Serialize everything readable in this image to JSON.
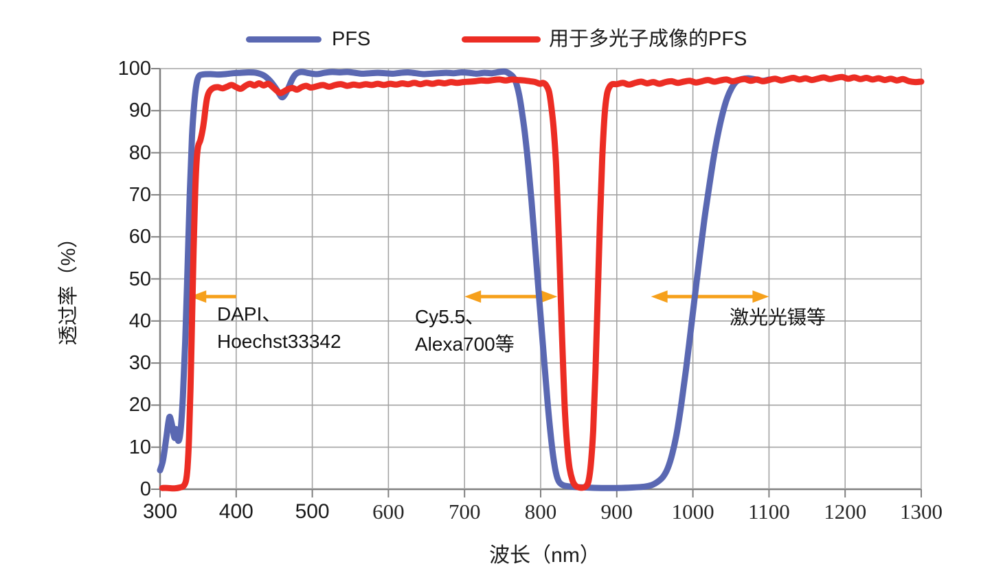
{
  "legend": {
    "items": [
      {
        "label": "PFS",
        "color": "#5A68B2"
      },
      {
        "label": "用于多光子成像的PFS",
        "color": "#EC2D24"
      }
    ]
  },
  "colors": {
    "grid": "#A3A3A3",
    "axis": "#7F7F7F",
    "arrow": "#F6A01B",
    "text": "#1A1A1A"
  },
  "chart_data": {
    "type": "line",
    "title": "",
    "xlabel": "波长（nm）",
    "ylabel": "透过率（%）",
    "xlim": [
      300,
      1300
    ],
    "ylim": [
      0,
      100
    ],
    "x_ticks": [
      300,
      400,
      500,
      600,
      700,
      800,
      900,
      1000,
      1100,
      1200,
      1300
    ],
    "y_ticks": [
      0,
      10,
      20,
      30,
      40,
      50,
      60,
      70,
      80,
      90,
      100
    ],
    "grid": true,
    "legend_position": "top",
    "series": [
      {
        "name": "PFS",
        "color": "#5A68B2",
        "points": [
          [
            300,
            4.5
          ],
          [
            304,
            7
          ],
          [
            308,
            12
          ],
          [
            311,
            16
          ],
          [
            313,
            17.2
          ],
          [
            316,
            15
          ],
          [
            319,
            12.2
          ],
          [
            321,
            14.3
          ],
          [
            324,
            11.5
          ],
          [
            327,
            14
          ],
          [
            330,
            22
          ],
          [
            333,
            35
          ],
          [
            336,
            52
          ],
          [
            339,
            70
          ],
          [
            342,
            84
          ],
          [
            345,
            92
          ],
          [
            348,
            96.5
          ],
          [
            351,
            98.2
          ],
          [
            356,
            98.6
          ],
          [
            366,
            98.7
          ],
          [
            376,
            98.6
          ],
          [
            386,
            98.7
          ],
          [
            396,
            98.9
          ],
          [
            406,
            99
          ],
          [
            416,
            99.1
          ],
          [
            426,
            99
          ],
          [
            436,
            98.4
          ],
          [
            444,
            97.2
          ],
          [
            451,
            95.6
          ],
          [
            456,
            94.2
          ],
          [
            460,
            93.2
          ],
          [
            464,
            93.8
          ],
          [
            469,
            95.6
          ],
          [
            474,
            97.6
          ],
          [
            479,
            98.8
          ],
          [
            486,
            99.2
          ],
          [
            496,
            98.9
          ],
          [
            506,
            98.7
          ],
          [
            516,
            99
          ],
          [
            526,
            99.2
          ],
          [
            536,
            99.1
          ],
          [
            546,
            99.2
          ],
          [
            556,
            99
          ],
          [
            566,
            98.8
          ],
          [
            576,
            98.9
          ],
          [
            586,
            99
          ],
          [
            596,
            98.9
          ],
          [
            606,
            98.8
          ],
          [
            616,
            99
          ],
          [
            626,
            99.1
          ],
          [
            636,
            98.9
          ],
          [
            646,
            98.7
          ],
          [
            656,
            98.8
          ],
          [
            666,
            98.9
          ],
          [
            676,
            99
          ],
          [
            686,
            98.9
          ],
          [
            696,
            99.1
          ],
          [
            706,
            99
          ],
          [
            716,
            98.8
          ],
          [
            726,
            99
          ],
          [
            736,
            98.9
          ],
          [
            746,
            99.2
          ],
          [
            753,
            99.3
          ],
          [
            759,
            98.8
          ],
          [
            764,
            98
          ],
          [
            768,
            96.5
          ],
          [
            772,
            93.5
          ],
          [
            776,
            89
          ],
          [
            780,
            83.5
          ],
          [
            784,
            76.5
          ],
          [
            788,
            68.5
          ],
          [
            792,
            59.5
          ],
          [
            796,
            50
          ],
          [
            800,
            41
          ],
          [
            804,
            32
          ],
          [
            808,
            23
          ],
          [
            812,
            15
          ],
          [
            816,
            8.5
          ],
          [
            820,
            4
          ],
          [
            824,
            1.8
          ],
          [
            829,
            1
          ],
          [
            836,
            0.7
          ],
          [
            846,
            0.5
          ],
          [
            860,
            0.4
          ],
          [
            880,
            0.3
          ],
          [
            900,
            0.3
          ],
          [
            920,
            0.4
          ],
          [
            936,
            0.6
          ],
          [
            946,
            1
          ],
          [
            954,
            1.8
          ],
          [
            961,
            3
          ],
          [
            967,
            5
          ],
          [
            973,
            8.5
          ],
          [
            979,
            13.5
          ],
          [
            985,
            20.5
          ],
          [
            991,
            28.5
          ],
          [
            997,
            37.5
          ],
          [
            1003,
            46.5
          ],
          [
            1009,
            55.5
          ],
          [
            1015,
            64
          ],
          [
            1021,
            71.5
          ],
          [
            1027,
            78.5
          ],
          [
            1033,
            84.5
          ],
          [
            1039,
            89.3
          ],
          [
            1045,
            93
          ],
          [
            1051,
            95.4
          ],
          [
            1057,
            96.9
          ],
          [
            1064,
            97.5
          ],
          [
            1073,
            97.7
          ],
          [
            1083,
            97.4
          ],
          [
            1092,
            97.1
          ],
          [
            1100,
            97.4
          ]
        ]
      },
      {
        "name": "用于多光子成像的PFS",
        "color": "#EC2D24",
        "points": [
          [
            303,
            0.3
          ],
          [
            310,
            0.3
          ],
          [
            318,
            0.2
          ],
          [
            326,
            0.4
          ],
          [
            331,
            0.8
          ],
          [
            334,
            2
          ],
          [
            336,
            5
          ],
          [
            338,
            12
          ],
          [
            340,
            24
          ],
          [
            342,
            40
          ],
          [
            344,
            57
          ],
          [
            346,
            70
          ],
          [
            348,
            78
          ],
          [
            350,
            81.5
          ],
          [
            353,
            83
          ],
          [
            356,
            85.5
          ],
          [
            358,
            88
          ],
          [
            360,
            91
          ],
          [
            362,
            93.2
          ],
          [
            365,
            94.6
          ],
          [
            370,
            95.4
          ],
          [
            376,
            95.6
          ],
          [
            382,
            95.3
          ],
          [
            388,
            95.7
          ],
          [
            394,
            96.1
          ],
          [
            400,
            95.6
          ],
          [
            406,
            95.2
          ],
          [
            412,
            95.9
          ],
          [
            418,
            96.4
          ],
          [
            424,
            96
          ],
          [
            430,
            96.5
          ],
          [
            436,
            96
          ],
          [
            442,
            96.4
          ],
          [
            448,
            95.6
          ],
          [
            453,
            94.8
          ],
          [
            458,
            94.2
          ],
          [
            463,
            94.6
          ],
          [
            468,
            95.1
          ],
          [
            474,
            95.4
          ],
          [
            480,
            95
          ],
          [
            486,
            95.6
          ],
          [
            492,
            95.9
          ],
          [
            498,
            95.5
          ],
          [
            506,
            95.8
          ],
          [
            514,
            96.1
          ],
          [
            522,
            95.7
          ],
          [
            530,
            96.1
          ],
          [
            538,
            96.3
          ],
          [
            546,
            95.9
          ],
          [
            554,
            96.2
          ],
          [
            562,
            96
          ],
          [
            570,
            96.3
          ],
          [
            578,
            96.1
          ],
          [
            586,
            96.4
          ],
          [
            594,
            96.1
          ],
          [
            602,
            96.4
          ],
          [
            610,
            96.2
          ],
          [
            618,
            96.5
          ],
          [
            626,
            96.3
          ],
          [
            634,
            96.6
          ],
          [
            642,
            96.3
          ],
          [
            650,
            96.6
          ],
          [
            658,
            96.4
          ],
          [
            666,
            96.7
          ],
          [
            674,
            96.5
          ],
          [
            682,
            96.8
          ],
          [
            690,
            96.6
          ],
          [
            698,
            96.8
          ],
          [
            706,
            96.9
          ],
          [
            714,
            97
          ],
          [
            722,
            97.2
          ],
          [
            730,
            97.1
          ],
          [
            738,
            97.3
          ],
          [
            746,
            97.4
          ],
          [
            754,
            97.2
          ],
          [
            762,
            97.4
          ],
          [
            770,
            97.3
          ],
          [
            778,
            97.2
          ],
          [
            786,
            97
          ],
          [
            793,
            96.8
          ],
          [
            799,
            96.4
          ],
          [
            803,
            96.6
          ],
          [
            807,
            96.1
          ],
          [
            811,
            94.5
          ],
          [
            814,
            91
          ],
          [
            817,
            86
          ],
          [
            820,
            78
          ],
          [
            822,
            69
          ],
          [
            824,
            59
          ],
          [
            826,
            48
          ],
          [
            828,
            37
          ],
          [
            830,
            27
          ],
          [
            832,
            18
          ],
          [
            835,
            10
          ],
          [
            838,
            5
          ],
          [
            842,
            2
          ],
          [
            846,
            0.8
          ],
          [
            851,
            0.4
          ],
          [
            856,
            0.4
          ],
          [
            860,
            0.8
          ],
          [
            863,
            2
          ],
          [
            866,
            6
          ],
          [
            869,
            14
          ],
          [
            872,
            28
          ],
          [
            875,
            46
          ],
          [
            878,
            64
          ],
          [
            881,
            79
          ],
          [
            884,
            89
          ],
          [
            887,
            93.8
          ],
          [
            890,
            95.5
          ],
          [
            894,
            96.3
          ],
          [
            900,
            96.3
          ],
          [
            908,
            96.6
          ],
          [
            916,
            96.2
          ],
          [
            924,
            96.6
          ],
          [
            932,
            96.9
          ],
          [
            940,
            96.5
          ],
          [
            948,
            96.8
          ],
          [
            956,
            96.4
          ],
          [
            964,
            96.8
          ],
          [
            972,
            97
          ],
          [
            980,
            96.6
          ],
          [
            988,
            96.9
          ],
          [
            996,
            97.1
          ],
          [
            1004,
            96.7
          ],
          [
            1012,
            97
          ],
          [
            1020,
            97.3
          ],
          [
            1028,
            96.9
          ],
          [
            1036,
            97.2
          ],
          [
            1044,
            97.4
          ],
          [
            1052,
            97
          ],
          [
            1060,
            97.3
          ],
          [
            1068,
            97.5
          ],
          [
            1076,
            97.1
          ],
          [
            1084,
            97.4
          ],
          [
            1092,
            97
          ],
          [
            1100,
            97.3
          ],
          [
            1108,
            97.6
          ],
          [
            1116,
            97.2
          ],
          [
            1124,
            97.5
          ],
          [
            1132,
            97.8
          ],
          [
            1140,
            97.4
          ],
          [
            1148,
            97.7
          ],
          [
            1156,
            97.3
          ],
          [
            1164,
            97.6
          ],
          [
            1172,
            97.9
          ],
          [
            1180,
            97.5
          ],
          [
            1188,
            97.8
          ],
          [
            1196,
            98
          ],
          [
            1204,
            97.6
          ],
          [
            1212,
            97.9
          ],
          [
            1220,
            97.5
          ],
          [
            1228,
            97.8
          ],
          [
            1236,
            97.4
          ],
          [
            1244,
            97.7
          ],
          [
            1252,
            97.3
          ],
          [
            1260,
            97.6
          ],
          [
            1268,
            97.2
          ],
          [
            1276,
            97.5
          ],
          [
            1284,
            97
          ],
          [
            1292,
            96.8
          ],
          [
            1300,
            96.9
          ]
        ]
      }
    ],
    "annotations": [
      {
        "text": [
          "DAPI、",
          "Hoechst33342"
        ],
        "color": "#F6A01B",
        "arrow": {
          "from_nm": 400,
          "to_nm": 339,
          "at_pct": 45.8,
          "head_start": false,
          "head_end": true
        }
      },
      {
        "text": [
          "Cy5.5、",
          "Alexa700等"
        ],
        "color": "#F6A01B",
        "arrow": {
          "from_nm": 700,
          "to_nm": 822,
          "at_pct": 45.8,
          "head_start": true,
          "head_end": true
        }
      },
      {
        "text": [
          "激光光镊等"
        ],
        "color": "#F6A01B",
        "arrow": {
          "from_nm": 945,
          "to_nm": 1100,
          "at_pct": 45.8,
          "head_start": true,
          "head_end": true
        }
      }
    ]
  }
}
